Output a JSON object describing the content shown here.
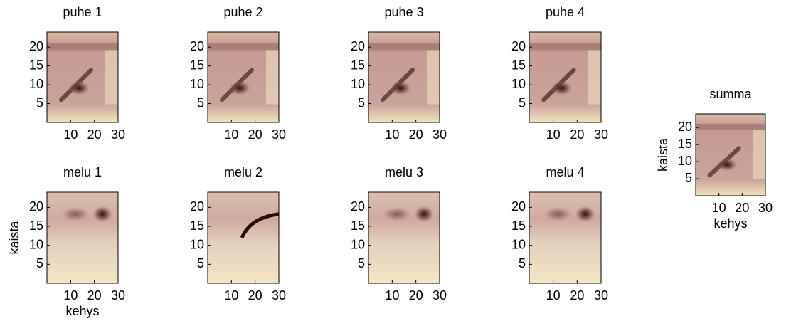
{
  "chart_data": [
    {
      "type": "heatmap",
      "title": "puhe 1",
      "xlim": [
        0,
        30
      ],
      "ylim": [
        0,
        24
      ],
      "xticks": [
        10,
        20,
        30
      ],
      "yticks": [
        5,
        10,
        15,
        20
      ]
    },
    {
      "type": "heatmap",
      "title": "puhe 2",
      "xlim": [
        0,
        30
      ],
      "ylim": [
        0,
        24
      ],
      "xticks": [
        10,
        20,
        30
      ],
      "yticks": [
        5,
        10,
        15,
        20
      ]
    },
    {
      "type": "heatmap",
      "title": "puhe 3",
      "xlim": [
        0,
        30
      ],
      "ylim": [
        0,
        24
      ],
      "xticks": [
        10,
        20,
        30
      ],
      "yticks": [
        5,
        10,
        15,
        20
      ]
    },
    {
      "type": "heatmap",
      "title": "puhe 4",
      "xlim": [
        0,
        30
      ],
      "ylim": [
        0,
        24
      ],
      "xticks": [
        10,
        20,
        30
      ],
      "yticks": [
        5,
        10,
        15,
        20
      ]
    },
    {
      "type": "heatmap",
      "title": "melu 1",
      "xlabel": "kehys",
      "ylabel": "kaista",
      "xlim": [
        0,
        30
      ],
      "ylim": [
        0,
        24
      ],
      "xticks": [
        10,
        20,
        30
      ],
      "yticks": [
        5,
        10,
        15,
        20
      ]
    },
    {
      "type": "heatmap",
      "title": "melu 2",
      "xlim": [
        0,
        30
      ],
      "ylim": [
        0,
        24
      ],
      "xticks": [
        10,
        20,
        30
      ],
      "yticks": [
        5,
        10,
        15,
        20
      ]
    },
    {
      "type": "heatmap",
      "title": "melu 3",
      "xlim": [
        0,
        30
      ],
      "ylim": [
        0,
        24
      ],
      "xticks": [
        10,
        20,
        30
      ],
      "yticks": [
        5,
        10,
        15,
        20
      ]
    },
    {
      "type": "heatmap",
      "title": "melu 4",
      "xlim": [
        0,
        30
      ],
      "ylim": [
        0,
        24
      ],
      "xticks": [
        10,
        20,
        30
      ],
      "yticks": [
        5,
        10,
        15,
        20
      ]
    },
    {
      "type": "heatmap",
      "title": "summa",
      "xlabel": "kehys",
      "ylabel": "kaista",
      "xlim": [
        0,
        30
      ],
      "ylim": [
        0,
        24
      ],
      "xticks": [
        10,
        20,
        30
      ],
      "yticks": [
        5,
        10,
        15,
        20
      ]
    }
  ]
}
